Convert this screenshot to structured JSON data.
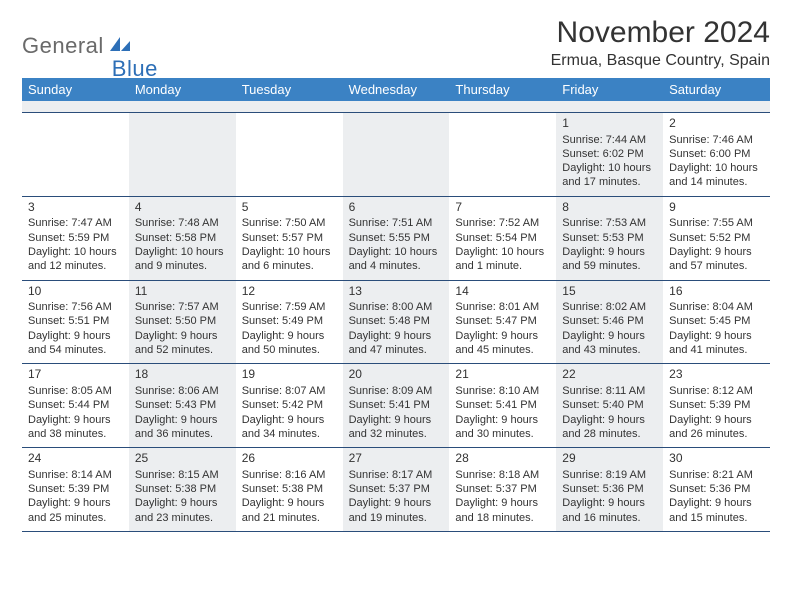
{
  "brand": {
    "general": "General",
    "blue": "Blue"
  },
  "title": "November 2024",
  "location": "Ermua, Basque Country, Spain",
  "colors": {
    "header_bg": "#3b82c4",
    "header_text": "#ffffff",
    "shaded_bg": "#eceef0",
    "divider": "#2a4d7a",
    "logo_gray": "#6a6a6a",
    "logo_blue": "#2d6fb7",
    "text": "#333333"
  },
  "weekdays": [
    "Sunday",
    "Monday",
    "Tuesday",
    "Wednesday",
    "Thursday",
    "Friday",
    "Saturday"
  ],
  "weeks": [
    [
      {
        "empty": true,
        "shaded": false
      },
      {
        "empty": true,
        "shaded": true
      },
      {
        "empty": true,
        "shaded": false
      },
      {
        "empty": true,
        "shaded": true
      },
      {
        "empty": true,
        "shaded": false
      },
      {
        "day": "1",
        "shaded": true,
        "sunrise": "Sunrise: 7:44 AM",
        "sunset": "Sunset: 6:02 PM",
        "day1": "Daylight: 10 hours",
        "day2": "and 17 minutes."
      },
      {
        "day": "2",
        "shaded": false,
        "sunrise": "Sunrise: 7:46 AM",
        "sunset": "Sunset: 6:00 PM",
        "day1": "Daylight: 10 hours",
        "day2": "and 14 minutes."
      }
    ],
    [
      {
        "day": "3",
        "shaded": false,
        "sunrise": "Sunrise: 7:47 AM",
        "sunset": "Sunset: 5:59 PM",
        "day1": "Daylight: 10 hours",
        "day2": "and 12 minutes."
      },
      {
        "day": "4",
        "shaded": true,
        "sunrise": "Sunrise: 7:48 AM",
        "sunset": "Sunset: 5:58 PM",
        "day1": "Daylight: 10 hours",
        "day2": "and 9 minutes."
      },
      {
        "day": "5",
        "shaded": false,
        "sunrise": "Sunrise: 7:50 AM",
        "sunset": "Sunset: 5:57 PM",
        "day1": "Daylight: 10 hours",
        "day2": "and 6 minutes."
      },
      {
        "day": "6",
        "shaded": true,
        "sunrise": "Sunrise: 7:51 AM",
        "sunset": "Sunset: 5:55 PM",
        "day1": "Daylight: 10 hours",
        "day2": "and 4 minutes."
      },
      {
        "day": "7",
        "shaded": false,
        "sunrise": "Sunrise: 7:52 AM",
        "sunset": "Sunset: 5:54 PM",
        "day1": "Daylight: 10 hours",
        "day2": "and 1 minute."
      },
      {
        "day": "8",
        "shaded": true,
        "sunrise": "Sunrise: 7:53 AM",
        "sunset": "Sunset: 5:53 PM",
        "day1": "Daylight: 9 hours",
        "day2": "and 59 minutes."
      },
      {
        "day": "9",
        "shaded": false,
        "sunrise": "Sunrise: 7:55 AM",
        "sunset": "Sunset: 5:52 PM",
        "day1": "Daylight: 9 hours",
        "day2": "and 57 minutes."
      }
    ],
    [
      {
        "day": "10",
        "shaded": false,
        "sunrise": "Sunrise: 7:56 AM",
        "sunset": "Sunset: 5:51 PM",
        "day1": "Daylight: 9 hours",
        "day2": "and 54 minutes."
      },
      {
        "day": "11",
        "shaded": true,
        "sunrise": "Sunrise: 7:57 AM",
        "sunset": "Sunset: 5:50 PM",
        "day1": "Daylight: 9 hours",
        "day2": "and 52 minutes."
      },
      {
        "day": "12",
        "shaded": false,
        "sunrise": "Sunrise: 7:59 AM",
        "sunset": "Sunset: 5:49 PM",
        "day1": "Daylight: 9 hours",
        "day2": "and 50 minutes."
      },
      {
        "day": "13",
        "shaded": true,
        "sunrise": "Sunrise: 8:00 AM",
        "sunset": "Sunset: 5:48 PM",
        "day1": "Daylight: 9 hours",
        "day2": "and 47 minutes."
      },
      {
        "day": "14",
        "shaded": false,
        "sunrise": "Sunrise: 8:01 AM",
        "sunset": "Sunset: 5:47 PM",
        "day1": "Daylight: 9 hours",
        "day2": "and 45 minutes."
      },
      {
        "day": "15",
        "shaded": true,
        "sunrise": "Sunrise: 8:02 AM",
        "sunset": "Sunset: 5:46 PM",
        "day1": "Daylight: 9 hours",
        "day2": "and 43 minutes."
      },
      {
        "day": "16",
        "shaded": false,
        "sunrise": "Sunrise: 8:04 AM",
        "sunset": "Sunset: 5:45 PM",
        "day1": "Daylight: 9 hours",
        "day2": "and 41 minutes."
      }
    ],
    [
      {
        "day": "17",
        "shaded": false,
        "sunrise": "Sunrise: 8:05 AM",
        "sunset": "Sunset: 5:44 PM",
        "day1": "Daylight: 9 hours",
        "day2": "and 38 minutes."
      },
      {
        "day": "18",
        "shaded": true,
        "sunrise": "Sunrise: 8:06 AM",
        "sunset": "Sunset: 5:43 PM",
        "day1": "Daylight: 9 hours",
        "day2": "and 36 minutes."
      },
      {
        "day": "19",
        "shaded": false,
        "sunrise": "Sunrise: 8:07 AM",
        "sunset": "Sunset: 5:42 PM",
        "day1": "Daylight: 9 hours",
        "day2": "and 34 minutes."
      },
      {
        "day": "20",
        "shaded": true,
        "sunrise": "Sunrise: 8:09 AM",
        "sunset": "Sunset: 5:41 PM",
        "day1": "Daylight: 9 hours",
        "day2": "and 32 minutes."
      },
      {
        "day": "21",
        "shaded": false,
        "sunrise": "Sunrise: 8:10 AM",
        "sunset": "Sunset: 5:41 PM",
        "day1": "Daylight: 9 hours",
        "day2": "and 30 minutes."
      },
      {
        "day": "22",
        "shaded": true,
        "sunrise": "Sunrise: 8:11 AM",
        "sunset": "Sunset: 5:40 PM",
        "day1": "Daylight: 9 hours",
        "day2": "and 28 minutes."
      },
      {
        "day": "23",
        "shaded": false,
        "sunrise": "Sunrise: 8:12 AM",
        "sunset": "Sunset: 5:39 PM",
        "day1": "Daylight: 9 hours",
        "day2": "and 26 minutes."
      }
    ],
    [
      {
        "day": "24",
        "shaded": false,
        "sunrise": "Sunrise: 8:14 AM",
        "sunset": "Sunset: 5:39 PM",
        "day1": "Daylight: 9 hours",
        "day2": "and 25 minutes."
      },
      {
        "day": "25",
        "shaded": true,
        "sunrise": "Sunrise: 8:15 AM",
        "sunset": "Sunset: 5:38 PM",
        "day1": "Daylight: 9 hours",
        "day2": "and 23 minutes."
      },
      {
        "day": "26",
        "shaded": false,
        "sunrise": "Sunrise: 8:16 AM",
        "sunset": "Sunset: 5:38 PM",
        "day1": "Daylight: 9 hours",
        "day2": "and 21 minutes."
      },
      {
        "day": "27",
        "shaded": true,
        "sunrise": "Sunrise: 8:17 AM",
        "sunset": "Sunset: 5:37 PM",
        "day1": "Daylight: 9 hours",
        "day2": "and 19 minutes."
      },
      {
        "day": "28",
        "shaded": false,
        "sunrise": "Sunrise: 8:18 AM",
        "sunset": "Sunset: 5:37 PM",
        "day1": "Daylight: 9 hours",
        "day2": "and 18 minutes."
      },
      {
        "day": "29",
        "shaded": true,
        "sunrise": "Sunrise: 8:19 AM",
        "sunset": "Sunset: 5:36 PM",
        "day1": "Daylight: 9 hours",
        "day2": "and 16 minutes."
      },
      {
        "day": "30",
        "shaded": false,
        "sunrise": "Sunrise: 8:21 AM",
        "sunset": "Sunset: 5:36 PM",
        "day1": "Daylight: 9 hours",
        "day2": "and 15 minutes."
      }
    ]
  ]
}
